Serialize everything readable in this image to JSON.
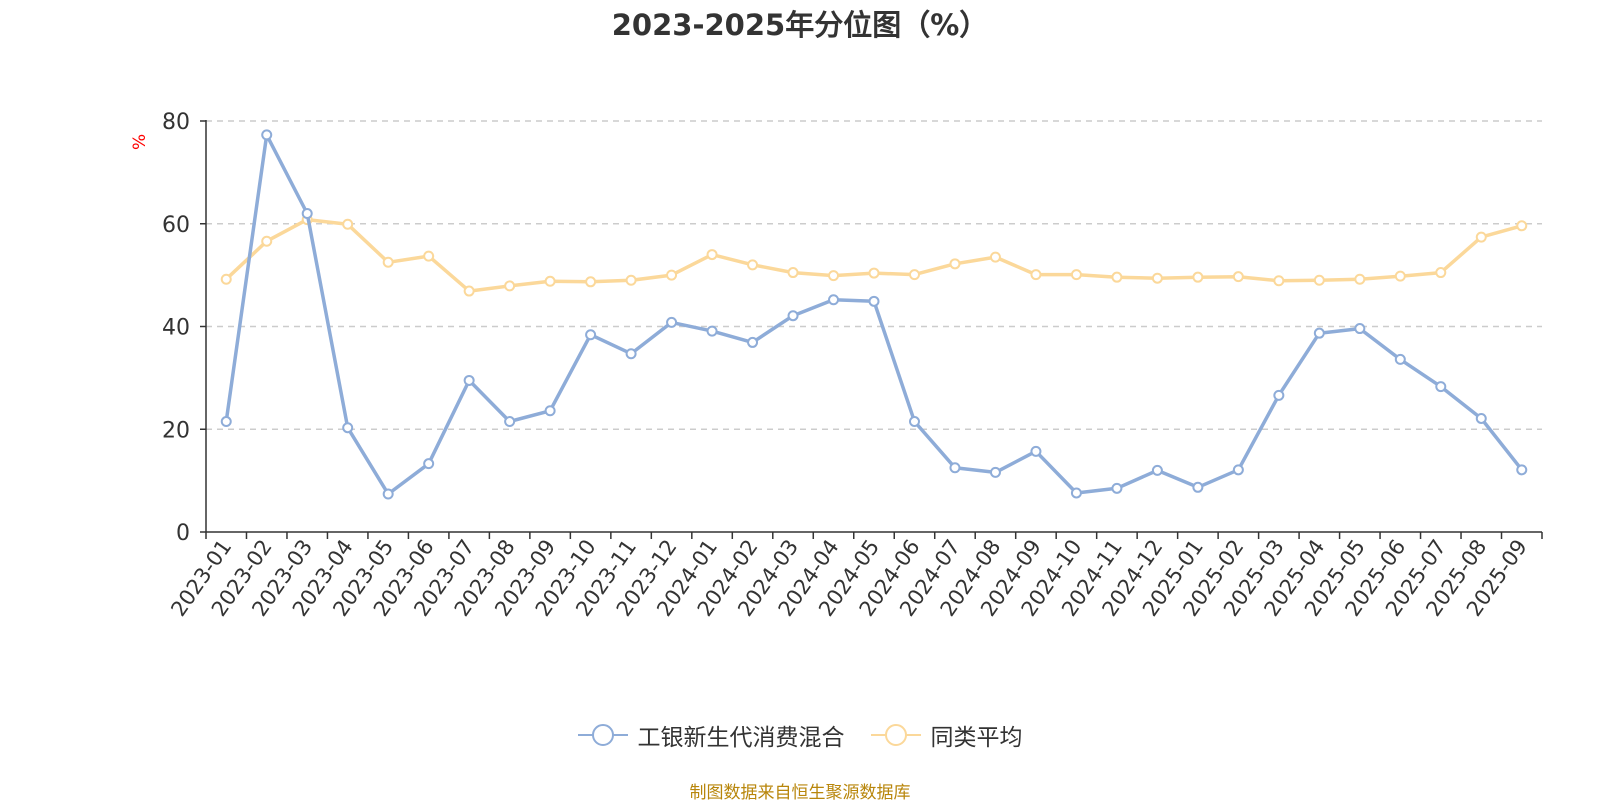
{
  "chart_data": {
    "type": "line",
    "title": "2023-2025年分位图（%）",
    "ylabel": "%",
    "xlabel": "",
    "ylim": [
      0,
      80
    ],
    "yticks": [
      0,
      20,
      40,
      60,
      80
    ],
    "grid": true,
    "legend_position": "bottom",
    "categories": [
      "2023-01",
      "2023-02",
      "2023-03",
      "2023-04",
      "2023-05",
      "2023-06",
      "2023-07",
      "2023-08",
      "2023-09",
      "2023-10",
      "2023-11",
      "2023-12",
      "2024-01",
      "2024-02",
      "2024-03",
      "2024-04",
      "2024-05",
      "2024-06",
      "2024-07",
      "2024-08",
      "2024-09",
      "2024-10",
      "2024-11",
      "2024-12",
      "2025-01",
      "2025-02",
      "2025-03",
      "2025-04",
      "2025-05",
      "2025-06",
      "2025-07",
      "2025-08",
      "2025-09"
    ],
    "series": [
      {
        "name": "工银新生代消费混合",
        "color": "#8eacd8",
        "values": [
          21.5,
          77.3,
          62.0,
          20.3,
          7.4,
          13.3,
          29.5,
          21.5,
          23.6,
          38.4,
          34.7,
          40.8,
          39.1,
          36.9,
          42.1,
          45.2,
          44.9,
          21.5,
          12.5,
          11.6,
          15.7,
          7.6,
          8.5,
          12.0,
          8.7,
          12.1,
          26.6,
          38.7,
          39.6,
          33.6,
          28.3,
          22.1,
          12.1
        ]
      },
      {
        "name": "同类平均",
        "color": "#fbd89a",
        "values": [
          49.2,
          56.6,
          60.8,
          59.9,
          52.5,
          53.7,
          46.9,
          47.9,
          48.8,
          48.7,
          49.0,
          50.0,
          54.0,
          52.0,
          50.5,
          49.9,
          50.4,
          50.1,
          52.2,
          53.5,
          50.1,
          50.1,
          49.6,
          49.4,
          49.6,
          49.7,
          48.9,
          49.0,
          49.2,
          49.8,
          50.5,
          57.4,
          59.6
        ]
      }
    ]
  },
  "footer": {
    "source": "制图数据来自恒生聚源数据库"
  }
}
